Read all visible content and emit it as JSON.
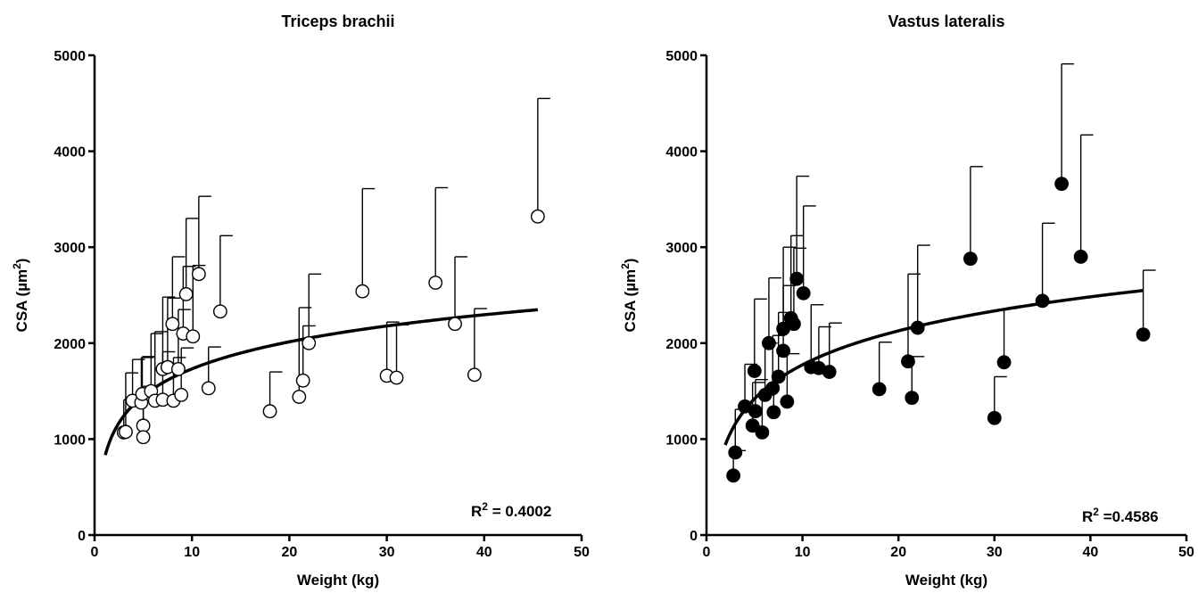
{
  "chart_data": [
    {
      "type": "scatter",
      "title": "Triceps brachii",
      "xlabel": "Weight (kg)",
      "ylabel_pre": "CSA (µm",
      "ylabel_sup": "2",
      "ylabel_post": ")",
      "xlim": [
        0,
        50
      ],
      "ylim": [
        0,
        5000
      ],
      "xticks": [
        0,
        10,
        20,
        30,
        40,
        50
      ],
      "yticks": [
        0,
        1000,
        2000,
        3000,
        4000,
        5000
      ],
      "marker": "open",
      "annotation": {
        "pre": "R",
        "sup": "2",
        "post": " = 0.4002"
      },
      "fit": {
        "type": "log",
        "a": 1770,
        "b": 0,
        "x0": 1.1,
        "x1": 45.5,
        "xstart": 1.1
      },
      "points": [
        {
          "x": 3.0,
          "y": 1070,
          "err": 1410
        },
        {
          "x": 3.2,
          "y": 1075,
          "err": 1690
        },
        {
          "x": 3.9,
          "y": 1400,
          "err": 1830
        },
        {
          "x": 4.8,
          "y": 1380,
          "err": 1850
        },
        {
          "x": 4.9,
          "y": 1470,
          "err": 1860
        },
        {
          "x": 5.0,
          "y": 1140,
          "err": 1550
        },
        {
          "x": 5.0,
          "y": 1020,
          "err": 1480
        },
        {
          "x": 5.8,
          "y": 1500,
          "err": 2100
        },
        {
          "x": 6.2,
          "y": 1400,
          "err": 2120
        },
        {
          "x": 7.0,
          "y": 1730,
          "err": 2480
        },
        {
          "x": 7.0,
          "y": 1410,
          "err": 1910
        },
        {
          "x": 7.5,
          "y": 1750,
          "err": 2470
        },
        {
          "x": 8.0,
          "y": 2200,
          "err": 2900
        },
        {
          "x": 8.1,
          "y": 1400,
          "err": 1850
        },
        {
          "x": 8.6,
          "y": 1730,
          "err": 2350
        },
        {
          "x": 8.9,
          "y": 1460,
          "err": 1950
        },
        {
          "x": 9.1,
          "y": 2100,
          "err": 2800
        },
        {
          "x": 9.4,
          "y": 2510,
          "err": 3300
        },
        {
          "x": 10.1,
          "y": 2070,
          "err": 2810
        },
        {
          "x": 10.7,
          "y": 2720,
          "err": 3530
        },
        {
          "x": 11.7,
          "y": 1530,
          "err": 1960
        },
        {
          "x": 12.9,
          "y": 2330,
          "err": 3120
        },
        {
          "x": 18.0,
          "y": 1290,
          "err": 1700
        },
        {
          "x": 21.0,
          "y": 1440,
          "err": 2370
        },
        {
          "x": 21.4,
          "y": 1610,
          "err": 2180
        },
        {
          "x": 22.0,
          "y": 2000,
          "err": 2720
        },
        {
          "x": 27.5,
          "y": 2540,
          "err": 3610
        },
        {
          "x": 30.0,
          "y": 1660,
          "err": 2220
        },
        {
          "x": 31.0,
          "y": 1640,
          "err": 2190
        },
        {
          "x": 35.0,
          "y": 2630,
          "err": 3620
        },
        {
          "x": 37.0,
          "y": 2200,
          "err": 2900
        },
        {
          "x": 39.0,
          "y": 1670,
          "err": 2360
        },
        {
          "x": 45.5,
          "y": 3320,
          "err": 4550
        }
      ]
    },
    {
      "type": "scatter",
      "title": "Vastus lateralis",
      "xlabel": "Weight (kg)",
      "ylabel_pre": "CSA (µm",
      "ylabel_sup": "2",
      "ylabel_post": ")",
      "xlim": [
        0,
        50
      ],
      "ylim": [
        0,
        5000
      ],
      "xticks": [
        0,
        10,
        20,
        30,
        40,
        50
      ],
      "yticks": [
        0,
        1000,
        2000,
        3000,
        4000,
        5000
      ],
      "marker": "filled",
      "annotation": {
        "pre": "R",
        "sup": "2",
        "post": " =0.4586"
      },
      "fit": {
        "type": "log",
        "x0": 1.95,
        "x1": 45.5
      },
      "points": [
        {
          "x": 2.8,
          "y": 620,
          "err": 880
        },
        {
          "x": 3.0,
          "y": 860,
          "err": 1310
        },
        {
          "x": 4.0,
          "y": 1340,
          "err": 1780
        },
        {
          "x": 4.8,
          "y": 1140,
          "err": 1590
        },
        {
          "x": 5.0,
          "y": 1710,
          "err": 2460
        },
        {
          "x": 5.1,
          "y": 1290,
          "err": 1620
        },
        {
          "x": 5.8,
          "y": 1070,
          "err": 1460
        },
        {
          "x": 6.1,
          "y": 1460,
          "err": 2000
        },
        {
          "x": 6.5,
          "y": 2000,
          "err": 2680
        },
        {
          "x": 6.9,
          "y": 1530,
          "err": 2080
        },
        {
          "x": 7.0,
          "y": 1280,
          "err": 1680
        },
        {
          "x": 7.5,
          "y": 1650,
          "err": 2320
        },
        {
          "x": 8.0,
          "y": 2150,
          "err": 3000
        },
        {
          "x": 8.0,
          "y": 1920,
          "err": 2600
        },
        {
          "x": 8.4,
          "y": 1390,
          "err": 1890
        },
        {
          "x": 8.8,
          "y": 2260,
          "err": 3120
        },
        {
          "x": 9.1,
          "y": 2200,
          "err": 2990
        },
        {
          "x": 9.4,
          "y": 2670,
          "err": 3740
        },
        {
          "x": 10.1,
          "y": 2520,
          "err": 3430
        },
        {
          "x": 10.9,
          "y": 1750,
          "err": 2400
        },
        {
          "x": 11.7,
          "y": 1740,
          "err": 2170
        },
        {
          "x": 12.8,
          "y": 1700,
          "err": 2210
        },
        {
          "x": 18.0,
          "y": 1520,
          "err": 2010
        },
        {
          "x": 21.0,
          "y": 1810,
          "err": 2720
        },
        {
          "x": 21.4,
          "y": 1430,
          "err": 1860
        },
        {
          "x": 22.0,
          "y": 2160,
          "err": 3020
        },
        {
          "x": 27.5,
          "y": 2880,
          "err": 3840
        },
        {
          "x": 30.0,
          "y": 1220,
          "err": 1650
        },
        {
          "x": 31.0,
          "y": 1800,
          "err": 2360
        },
        {
          "x": 35.0,
          "y": 2440,
          "err": 3250
        },
        {
          "x": 37.0,
          "y": 3660,
          "err": 4910
        },
        {
          "x": 39.0,
          "y": 2900,
          "err": 4170
        },
        {
          "x": 45.5,
          "y": 2090,
          "err": 2760
        }
      ]
    }
  ]
}
